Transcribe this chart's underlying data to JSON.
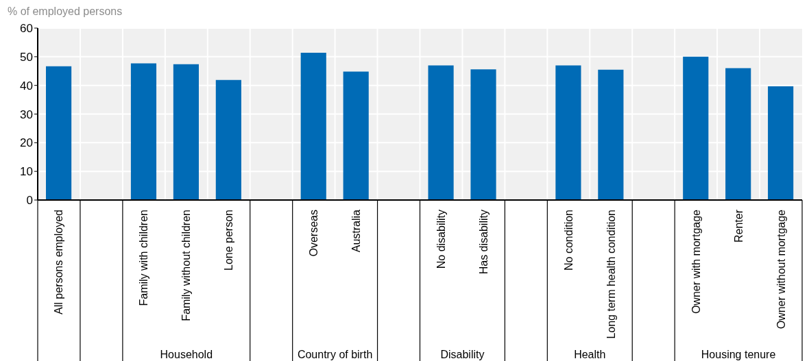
{
  "chart_data": {
    "type": "bar",
    "ylabel": "% of employed persons",
    "categories": [
      "All persons employed",
      null,
      "Family with children",
      "Family without children",
      "Lone person",
      null,
      "Overseas",
      "Australia",
      null,
      "No disability",
      "Has disability",
      null,
      "No condition",
      "Long term health condition",
      null,
      "Owner with mortgage",
      "Renter",
      "Owner without mortgage"
    ],
    "values": [
      46.7,
      null,
      47.7,
      47.4,
      41.9,
      null,
      51.4,
      44.8,
      null,
      47.0,
      45.6,
      null,
      47.0,
      45.5,
      null,
      50.0,
      46.0,
      39.7
    ],
    "color": "#006bb6",
    "ylim": [
      0,
      60
    ],
    "yticks": [
      0,
      10,
      20,
      30,
      40,
      50,
      60
    ],
    "grid": true,
    "annotations": [
      "Household",
      "Country of birth",
      "Disability",
      "Health",
      "Housing tenure"
    ]
  }
}
